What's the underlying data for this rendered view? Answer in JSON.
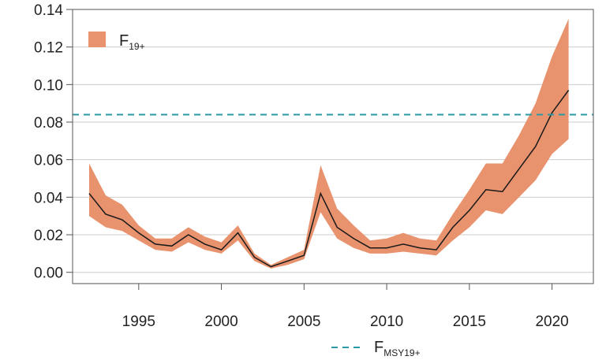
{
  "chart_data": {
    "type": "line",
    "x": [
      1992,
      1993,
      1994,
      1995,
      1996,
      1997,
      1998,
      1999,
      2000,
      2001,
      2002,
      2003,
      2004,
      2005,
      2006,
      2007,
      2008,
      2009,
      2010,
      2011,
      2012,
      2013,
      2014,
      2015,
      2016,
      2017,
      2018,
      2019,
      2020,
      2021
    ],
    "series": [
      {
        "name": "F19+",
        "values": [
          0.042,
          0.031,
          0.028,
          0.021,
          0.015,
          0.014,
          0.02,
          0.015,
          0.012,
          0.021,
          0.008,
          0.003,
          0.006,
          0.009,
          0.042,
          0.024,
          0.018,
          0.013,
          0.013,
          0.015,
          0.013,
          0.012,
          0.024,
          0.033,
          0.044,
          0.043,
          0.055,
          0.067,
          0.085,
          0.097
        ],
        "lower": [
          0.03,
          0.024,
          0.022,
          0.017,
          0.012,
          0.011,
          0.016,
          0.012,
          0.01,
          0.017,
          0.006,
          0.002,
          0.004,
          0.007,
          0.032,
          0.018,
          0.013,
          0.01,
          0.01,
          0.011,
          0.01,
          0.009,
          0.017,
          0.024,
          0.033,
          0.031,
          0.04,
          0.049,
          0.063,
          0.071
        ],
        "upper": [
          0.058,
          0.041,
          0.036,
          0.025,
          0.018,
          0.018,
          0.024,
          0.019,
          0.016,
          0.025,
          0.01,
          0.004,
          0.008,
          0.012,
          0.057,
          0.034,
          0.025,
          0.017,
          0.018,
          0.021,
          0.018,
          0.017,
          0.031,
          0.044,
          0.058,
          0.058,
          0.073,
          0.09,
          0.115,
          0.135
        ]
      }
    ],
    "reference_line": {
      "name": "FMSY19+",
      "value": 0.084
    },
    "legend_labels": {
      "band": {
        "main": "F",
        "sub": "19+"
      },
      "ref": {
        "main": "F",
        "sub": "MSY19+"
      }
    },
    "xticks": [
      1995,
      2000,
      2005,
      2010,
      2015,
      2020
    ],
    "yticks": [
      "0.00",
      "0.02",
      "0.04",
      "0.06",
      "0.08",
      "0.10",
      "0.12",
      "0.14"
    ],
    "xlim": [
      1991,
      2022.5
    ],
    "ylim": [
      -0.006,
      0.14
    ],
    "grid": "horizontal",
    "legend": "top-left and bottom",
    "colors": {
      "band": "#e8926e",
      "line": "#1a1a1a",
      "reference": "#2a9aa6",
      "grid": "#cccccc",
      "axis": "#555555"
    }
  }
}
